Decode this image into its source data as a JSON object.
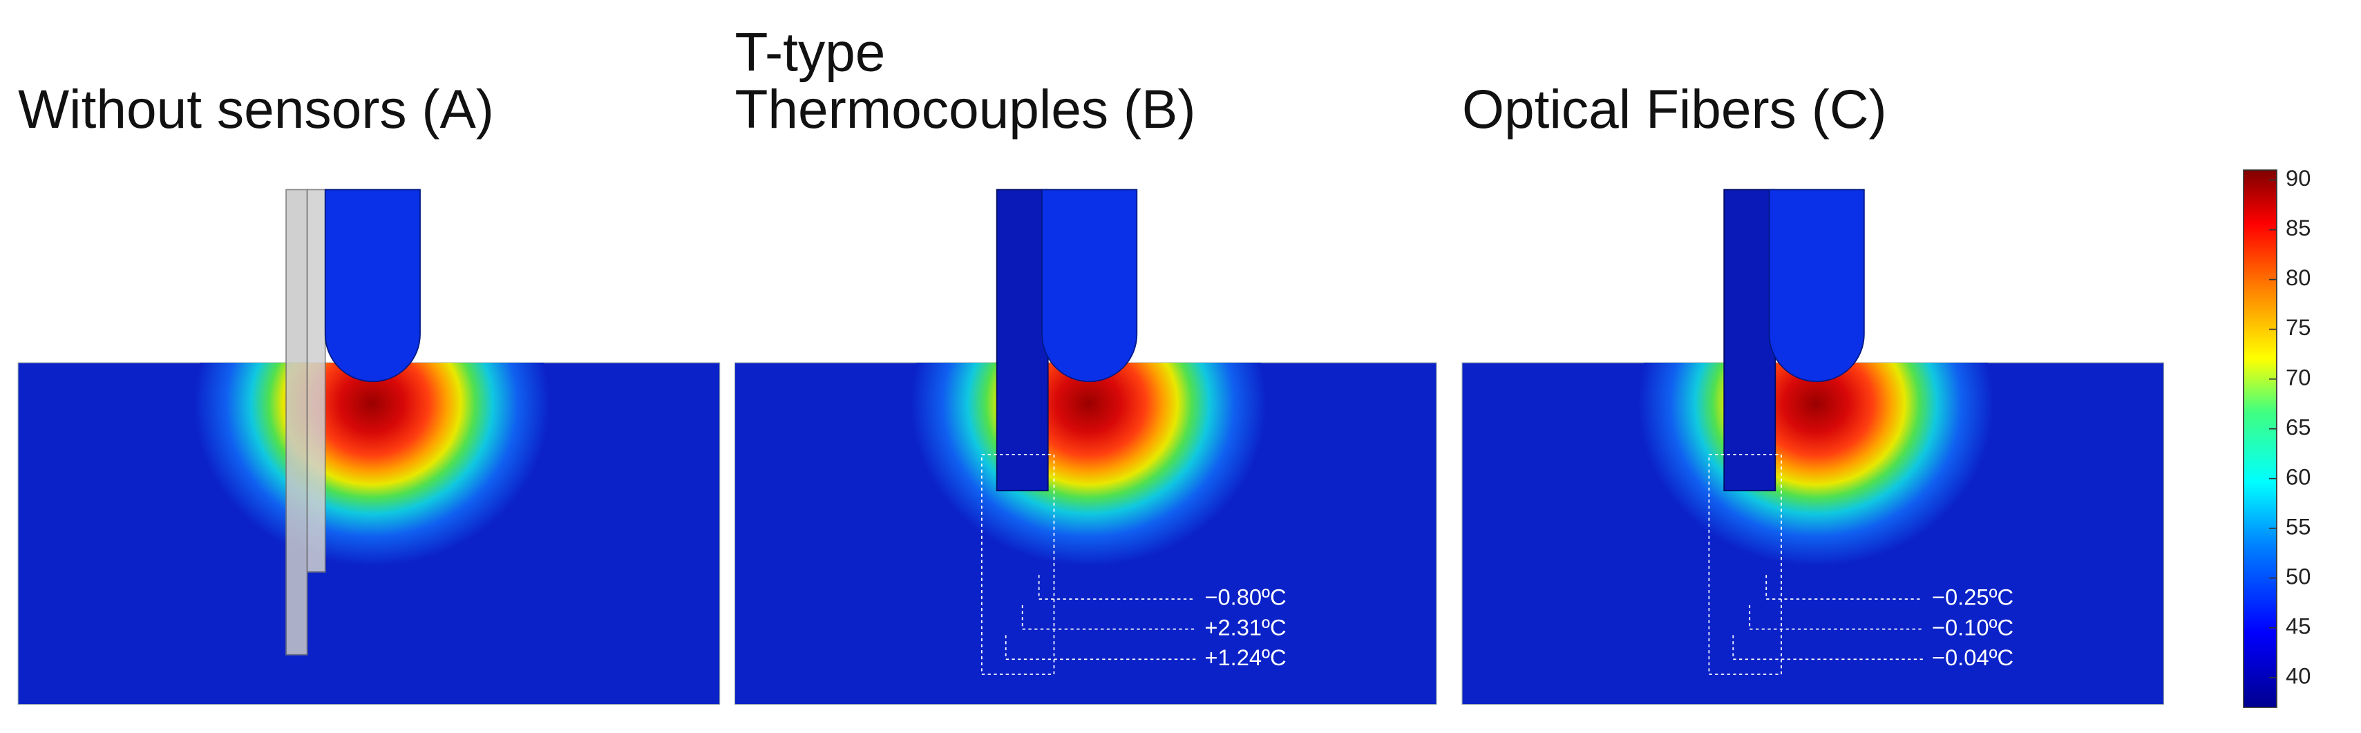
{
  "panels": [
    {
      "title": [
        "Without sensors (A)"
      ],
      "sensor": "gray",
      "annotations": []
    },
    {
      "title": [
        "T-type",
        "Thermocouples (B)"
      ],
      "sensor": "blue",
      "annotations": [
        "−0.80ºC",
        "+2.31ºC",
        "+1.24ºC"
      ]
    },
    {
      "title": [
        "Optical Fibers (C)"
      ],
      "sensor": "blue",
      "annotations": [
        "−0.25ºC",
        "−0.10ºC",
        "−0.04ºC"
      ]
    }
  ],
  "colorbar": {
    "range": [
      37,
      91
    ],
    "ticks": [
      40,
      45,
      50,
      55,
      60,
      65,
      70,
      75,
      80,
      85,
      90
    ]
  }
}
